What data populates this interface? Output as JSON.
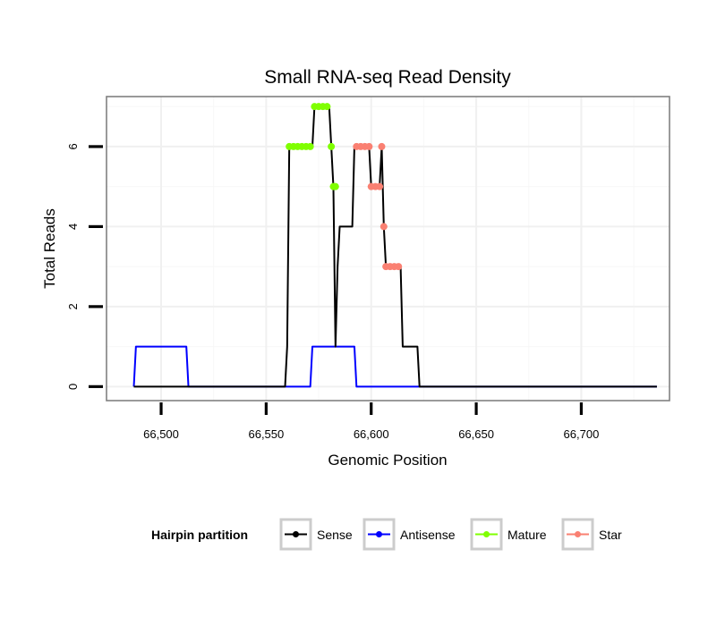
{
  "chart_data": {
    "type": "line",
    "title": "Small RNA-seq Read Density",
    "xlabel": "Genomic Position",
    "ylabel": "Total Reads",
    "xlim": [
      66474,
      66742
    ],
    "ylim": [
      -0.35,
      7.25
    ],
    "x_ticks": [
      66500,
      66550,
      66600,
      66650,
      66700
    ],
    "x_tick_labels": [
      "66,500",
      "66,550",
      "66,600",
      "66,650",
      "66,700"
    ],
    "y_ticks": [
      0,
      2,
      4,
      6
    ],
    "y_tick_labels": [
      "0",
      "2",
      "4",
      "6"
    ],
    "grid": true,
    "legend": {
      "title": "Hairpin partition",
      "position": "bottom",
      "entries": [
        {
          "name": "Sense",
          "color": "#000000"
        },
        {
          "name": "Antisense",
          "color": "#0000ff"
        },
        {
          "name": "Mature",
          "color": "#7fff00"
        },
        {
          "name": "Star",
          "color": "#fa8072"
        }
      ]
    },
    "series": [
      {
        "name": "Sense",
        "color": "#000000",
        "x": [
          66487,
          66559,
          66560,
          66561,
          66572,
          66573,
          66580,
          66581,
          66582,
          66583,
          66584,
          66585,
          66591,
          66592,
          66593,
          66599,
          66600,
          66604,
          66605,
          66606,
          66607,
          66614,
          66615,
          66622,
          66623,
          66736
        ],
        "y": [
          0,
          0,
          1,
          6,
          6,
          7,
          7,
          6,
          5,
          1,
          3,
          4,
          4,
          6,
          6,
          6,
          5,
          5,
          6,
          4,
          3,
          3,
          1,
          1,
          0,
          0
        ]
      },
      {
        "name": "Antisense",
        "color": "#0000ff",
        "x": [
          66487,
          66488,
          66512,
          66513,
          66571,
          66572,
          66592,
          66593,
          66736
        ],
        "y": [
          0,
          1,
          1,
          0,
          0,
          1,
          1,
          0,
          0
        ]
      },
      {
        "name": "Mature",
        "color": "#7fff00",
        "points": [
          {
            "x": 66561,
            "y": 6
          },
          {
            "x": 66563,
            "y": 6
          },
          {
            "x": 66565,
            "y": 6
          },
          {
            "x": 66567,
            "y": 6
          },
          {
            "x": 66569,
            "y": 6
          },
          {
            "x": 66571,
            "y": 6
          },
          {
            "x": 66573,
            "y": 7
          },
          {
            "x": 66575,
            "y": 7
          },
          {
            "x": 66577,
            "y": 7
          },
          {
            "x": 66579,
            "y": 7
          },
          {
            "x": 66581,
            "y": 6
          },
          {
            "x": 66582,
            "y": 5
          },
          {
            "x": 66583,
            "y": 5
          }
        ]
      },
      {
        "name": "Star",
        "color": "#fa8072",
        "points": [
          {
            "x": 66593,
            "y": 6
          },
          {
            "x": 66595,
            "y": 6
          },
          {
            "x": 66597,
            "y": 6
          },
          {
            "x": 66599,
            "y": 6
          },
          {
            "x": 66600,
            "y": 5
          },
          {
            "x": 66602,
            "y": 5
          },
          {
            "x": 66604,
            "y": 5
          },
          {
            "x": 66605,
            "y": 6
          },
          {
            "x": 66606,
            "y": 4
          },
          {
            "x": 66607,
            "y": 3
          },
          {
            "x": 66609,
            "y": 3
          },
          {
            "x": 66611,
            "y": 3
          },
          {
            "x": 66613,
            "y": 3
          }
        ]
      }
    ]
  }
}
